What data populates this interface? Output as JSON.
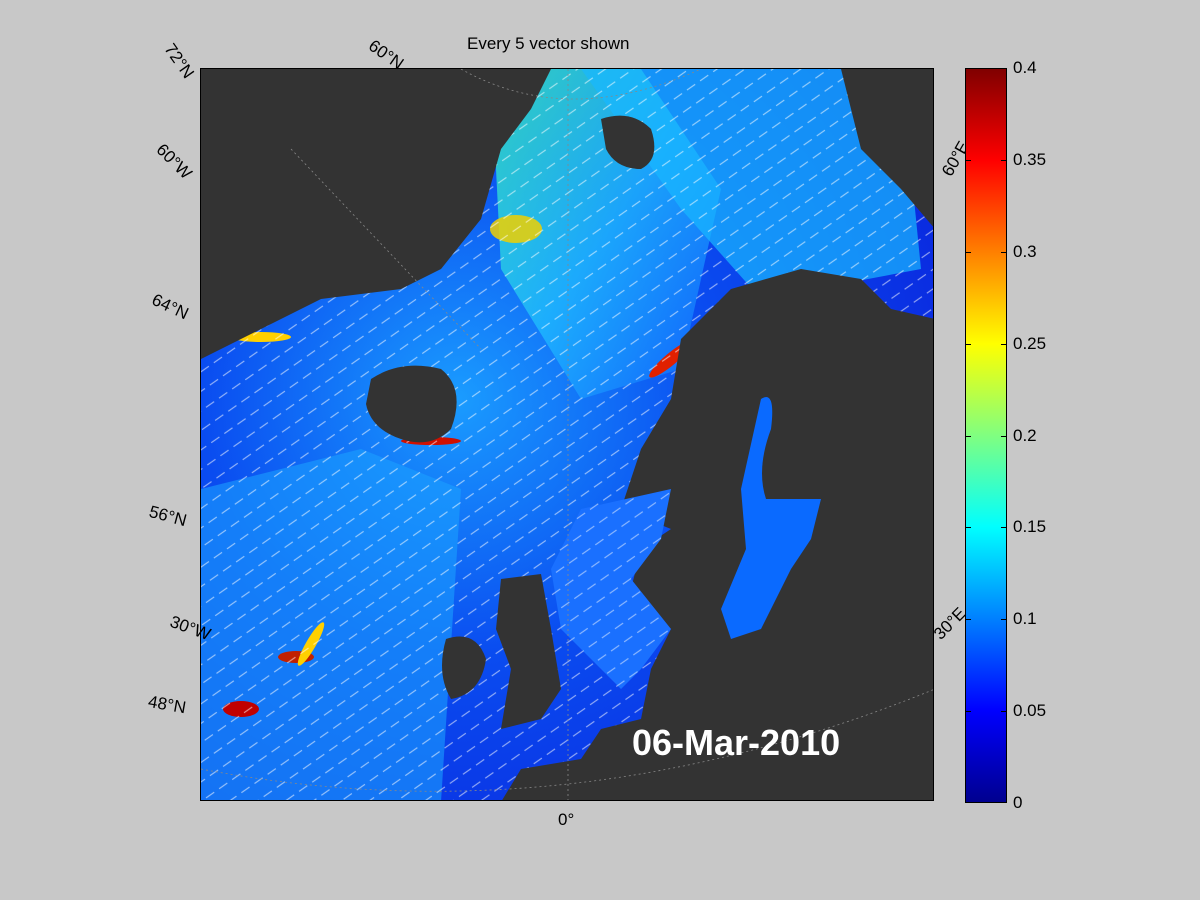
{
  "title": "Every 5 vector shown",
  "date_label": "06-Mar-2010",
  "lat_labels": [
    "72°N",
    "60°N",
    "64°N",
    "56°N",
    "48°N"
  ],
  "lon_labels": [
    "60°W",
    "30°W",
    "0°",
    "30°E",
    "60°E"
  ],
  "colorbar": {
    "min": 0,
    "max": 0.4,
    "colormap": "jet",
    "ticks": [
      "0.4",
      "0.35",
      "0.3",
      "0.25",
      "0.2",
      "0.15",
      "0.1",
      "0.05",
      "0"
    ]
  },
  "colors": {
    "background": "#c8c8c8",
    "land": "#333333",
    "ocean_low": "#0a2ae0",
    "ocean_mid": "#1a90ff",
    "ocean_high": "#30e0e0",
    "vectors": "#ffffff"
  }
}
